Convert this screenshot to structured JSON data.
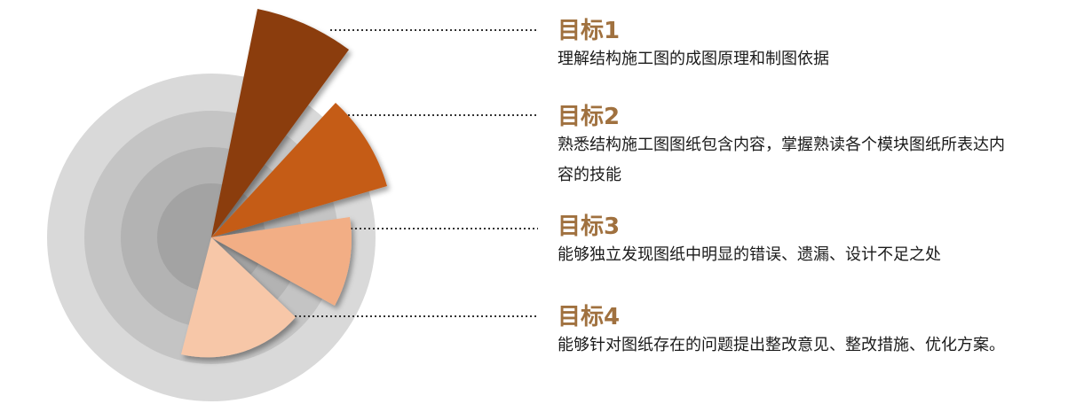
{
  "colors": {
    "title": "#A0713F",
    "ring_outer": "#D9D9D9",
    "ring_2": "#C4C4C4",
    "ring_3": "#B3B3B3",
    "ring_inner": "#A3A3A3",
    "connector": "#333333"
  },
  "goals": [
    {
      "title": "目标1",
      "description": "理解结构施工图的成图原理和制图依据",
      "color": "#8B3E10"
    },
    {
      "title": "目标2",
      "description": "熟悉结构施工图图纸包含内容，掌握熟读各个模块图纸所表达内容的技能",
      "color": "#C55C16"
    },
    {
      "title": "目标3",
      "description": "能够独立发现图纸中明显的错误、遗漏、设计不足之处",
      "color": "#F2AE85"
    },
    {
      "title": "目标4",
      "description": "能够针对图纸存在的问题提出整改意见、整改措施、优化方案。",
      "color": "#F7C7A8"
    }
  ]
}
